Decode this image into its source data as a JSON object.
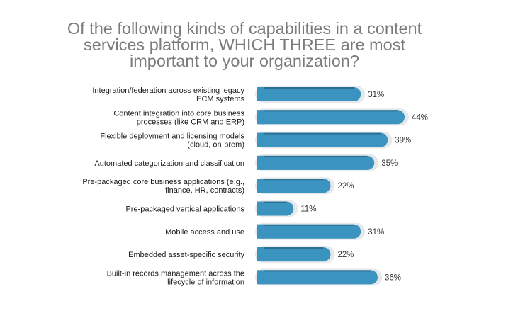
{
  "chart_data": {
    "type": "bar",
    "orientation": "horizontal",
    "title_lines": [
      "Of the following kinds of capabilities in a content",
      "services platform, WHICH THREE are most",
      "important to your organization?"
    ],
    "categories": [
      [
        "Integration/federation across existing legacy",
        "ECM systems"
      ],
      [
        "Content integration into core business",
        "processes (like CRM and ERP)"
      ],
      [
        "Flexible deployment and licensing models",
        "(cloud, on-prem)"
      ],
      [
        "Automated categorization and classification"
      ],
      [
        "Pre-packaged core business applications (e.g.,",
        "finance, HR, contracts)"
      ],
      [
        "Pre-packaged vertical applications"
      ],
      [
        "Mobile access and use"
      ],
      [
        "Embedded asset-specific security"
      ],
      [
        "Built-in records management across the",
        "lifecycle of information"
      ]
    ],
    "values": [
      31,
      44,
      39,
      35,
      22,
      11,
      31,
      22,
      36
    ],
    "value_labels": [
      "31%",
      "44%",
      "39%",
      "35%",
      "22%",
      "11%",
      "31%",
      "22%",
      "36%"
    ],
    "unit": "%",
    "xlim": [
      0,
      44
    ],
    "grid": false,
    "legend": "none",
    "colors": {
      "bar": "#3a94bf",
      "bar_top": "#2a6f93",
      "track": "#e6e8ea"
    }
  }
}
